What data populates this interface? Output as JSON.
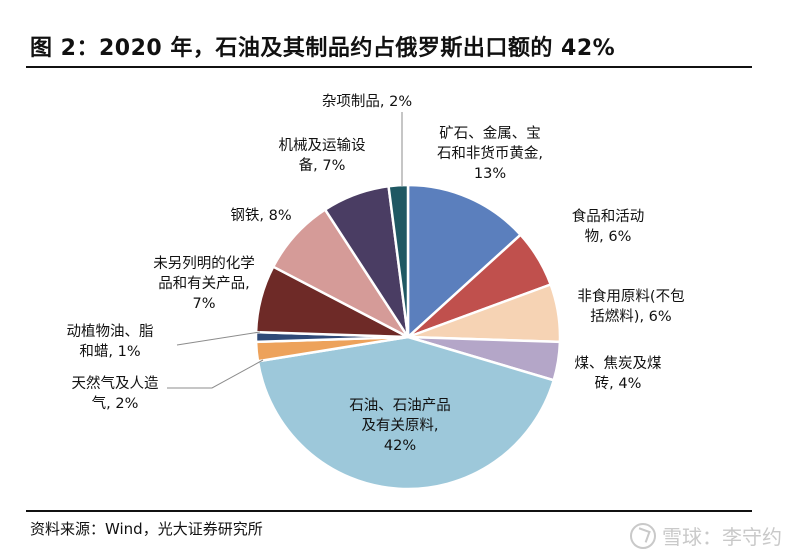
{
  "header": {
    "title": "图 2：2020 年，石油及其制品约占俄罗斯出口额的 42%"
  },
  "footer": {
    "source": "资料来源：Wind，光大证券研究所",
    "watermark_text": "雪球：李守约"
  },
  "chart_data": {
    "type": "pie",
    "title": "图 2：2020 年，石油及其制品约占俄罗斯出口额的 42%",
    "unit": "%",
    "legend": "none",
    "slices": [
      {
        "label_lines": [
          "矿石、金属、宝",
          "石和非货币黄金,",
          "13%"
        ],
        "value": 13,
        "color": "#5b7fbd"
      },
      {
        "label_lines": [
          "食品和活动",
          "物, 6%"
        ],
        "value": 6,
        "color": "#c0504d"
      },
      {
        "label_lines": [
          "非食用原料(不包",
          "括燃料), 6%"
        ],
        "value": 6,
        "color": "#f6d3b4"
      },
      {
        "label_lines": [
          "煤、焦炭及煤",
          "砖, 4%"
        ],
        "value": 4,
        "color": "#b4a6c8"
      },
      {
        "label_lines": [
          "石油、石油产品",
          "及有关原料,",
          "42%"
        ],
        "value": 42,
        "color": "#9dc8da"
      },
      {
        "label_lines": [
          "天然气及人造",
          "气, 2%"
        ],
        "value": 2,
        "color": "#eda25b"
      },
      {
        "label_lines": [
          "动植物油、脂",
          "和蜡, 1%"
        ],
        "value": 1,
        "color": "#2f4a78"
      },
      {
        "label_lines": [
          "未另列明的化学",
          "品和有关产品,",
          "7%"
        ],
        "value": 7,
        "color": "#6e2a27"
      },
      {
        "label_lines": [
          "钢铁, 8%"
        ],
        "value": 8,
        "color": "#d59b98"
      },
      {
        "label_lines": [
          "机械及运输设",
          "备, 7%"
        ],
        "value": 7,
        "color": "#4a3d63"
      },
      {
        "label_lines": [
          "杂项制品, 2%"
        ],
        "value": 2,
        "color": "#1f5863"
      }
    ]
  }
}
